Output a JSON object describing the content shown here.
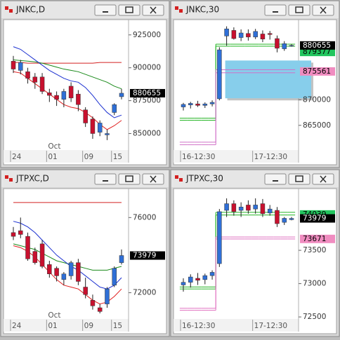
{
  "chart_data": [
    {
      "type": "candlestick",
      "title": "JNKC,D",
      "up_color": "#2f6fd6",
      "down_color": "#c8102e",
      "categories": [
        "24",
        null,
        null,
        null,
        null,
        "01",
        null,
        null,
        null,
        null,
        "09",
        null,
        null,
        null,
        "15",
        null
      ],
      "x_group": {
        "label": "Oct",
        "category": "01"
      },
      "open": [
        905000,
        898000,
        897000,
        893000,
        893000,
        881000,
        879000,
        876000,
        886000,
        880000,
        868000,
        861000,
        851000,
        849000,
        866000,
        878000
      ],
      "high": [
        909000,
        906000,
        900000,
        896000,
        896000,
        884000,
        882000,
        884000,
        889000,
        883000,
        870000,
        863000,
        860000,
        853000,
        873000,
        884000
      ],
      "low": [
        896000,
        895000,
        888000,
        884000,
        880000,
        874000,
        871000,
        870000,
        874000,
        867000,
        855000,
        846000,
        848000,
        845000,
        864000,
        876000
      ],
      "close": [
        899000,
        904000,
        892000,
        889000,
        882000,
        879000,
        876000,
        882000,
        877000,
        872000,
        858000,
        850000,
        858000,
        850000,
        872000,
        880655
      ],
      "lines": [
        {
          "color": "#d42020",
          "values": [
            904000,
            904000,
            903500,
            903500,
            903500,
            903500,
            903500,
            903500,
            903500,
            903500,
            903500,
            903500,
            904000,
            904000,
            904000,
            904000
          ]
        },
        {
          "color": "#1a8a1a",
          "values": [
            906000,
            905500,
            905000,
            904500,
            903500,
            902000,
            900500,
            899000,
            898000,
            897000,
            895000,
            893000,
            891000,
            889000,
            886000,
            884000
          ]
        },
        {
          "color": "#1a2fd0",
          "values": [
            916000,
            914000,
            910000,
            906000,
            902000,
            898000,
            895000,
            892000,
            890000,
            889000,
            885000,
            879000,
            872000,
            866000,
            862000,
            864000
          ]
        },
        {
          "color": "#e02020",
          "values": [
            897000,
            896000,
            892000,
            888000,
            884000,
            880000,
            876000,
            872000,
            870000,
            869000,
            866000,
            862000,
            857000,
            853000,
            856000,
            860000
          ]
        }
      ],
      "ylim": [
        838000,
        935000
      ],
      "yticks": [
        850000,
        875000,
        900000,
        925000
      ],
      "tags": [
        {
          "value": 880655,
          "color": "#000000",
          "text_color": "#ffffff"
        }
      ]
    },
    {
      "type": "candlestick",
      "title": "JNKC,30",
      "up_color": "#2f6fd6",
      "down_color": "#c8102e",
      "categories": [
        "16-12:30",
        null,
        null,
        null,
        null,
        null,
        null,
        null,
        null,
        null,
        "17-12:30",
        null,
        null,
        null,
        null,
        null
      ],
      "open": [
        868600,
        869000,
        869200,
        868900,
        869200,
        870200,
        882500,
        883600,
        882200,
        883000,
        882300,
        882900,
        883000,
        882000,
        880000,
        880600
      ],
      "high": [
        869400,
        869600,
        869800,
        869500,
        869900,
        880300,
        884400,
        884200,
        883800,
        883800,
        883900,
        883600,
        883500,
        882600,
        881500,
        880900
      ],
      "low": [
        867900,
        868300,
        868600,
        868400,
        868700,
        869900,
        880600,
        881800,
        881500,
        881600,
        881900,
        881300,
        881800,
        879300,
        879600,
        880400
      ],
      "close": [
        869100,
        869300,
        868900,
        869200,
        869500,
        879800,
        883900,
        882000,
        883100,
        882300,
        883400,
        881900,
        882800,
        880100,
        881000,
        880655
      ],
      "zone": {
        "from": 870300,
        "to": 877700,
        "color": "#87ceeb"
      },
      "levels": [
        {
          "color": "#22b422",
          "values": [
            866400,
            866400,
            866400,
            866400,
            866400,
            880900,
            880900,
            880900,
            880900,
            880900,
            880900,
            880900,
            880900,
            880900,
            880900,
            880900
          ]
        },
        {
          "color": "#22b422",
          "values": [
            866000,
            866000,
            866000,
            866000,
            866000,
            880500,
            880500,
            880500,
            880500,
            880500,
            880500,
            880500,
            880500,
            880500,
            880500,
            880500
          ]
        },
        {
          "color": "#d070c8",
          "values": [
            861700,
            861700,
            861700,
            861700,
            861700,
            875900,
            875900,
            875900,
            875900,
            875900,
            875900,
            875900,
            875900,
            875900,
            875900,
            875900
          ]
        },
        {
          "color": "#d070c8",
          "values": [
            861200,
            861200,
            861200,
            861200,
            861200,
            875300,
            875300,
            875300,
            875300,
            875300,
            875300,
            875300,
            875300,
            875300,
            875300,
            875300
          ]
        }
      ],
      "ylim": [
        860300,
        885300
      ],
      "yticks": [
        865000,
        870000
      ],
      "tags": [
        {
          "value": 879377,
          "color": "#22c55e",
          "text_color": "#000000"
        },
        {
          "value": 875561,
          "color": "#f08cc0",
          "text_color": "#000000"
        },
        {
          "value": 880655,
          "color": "#000000",
          "text_color": "#ffffff"
        }
      ]
    },
    {
      "type": "candlestick",
      "title": "JTPXC,D",
      "up_color": "#2f6fd6",
      "down_color": "#c8102e",
      "categories": [
        "24",
        null,
        null,
        null,
        null,
        "01",
        null,
        null,
        null,
        null,
        "09",
        null,
        null,
        null,
        "15",
        null
      ],
      "x_group": {
        "label": "Oct",
        "category": "01"
      },
      "open": [
        75200,
        75300,
        75000,
        74200,
        74600,
        73500,
        73300,
        72700,
        72900,
        73600,
        72300,
        71600,
        71200,
        71400,
        72400,
        73600
      ],
      "high": [
        75500,
        76000,
        75200,
        74400,
        74800,
        73700,
        73400,
        73100,
        73700,
        73800,
        72800,
        71900,
        71400,
        72300,
        73400,
        74300
      ],
      "low": [
        74800,
        74900,
        73700,
        73500,
        73300,
        72800,
        72600,
        72400,
        72700,
        72400,
        71700,
        71100,
        70900,
        71200,
        72300,
        73500
      ],
      "close": [
        75000,
        75100,
        73800,
        73600,
        73400,
        73000,
        72900,
        73000,
        73600,
        72600,
        71900,
        71300,
        71000,
        72200,
        73300,
        73979
      ],
      "lines": [
        {
          "color": "#d42020",
          "values": [
            76800,
            76800,
            76800,
            76800,
            76800,
            76800,
            76800,
            76800,
            76800,
            76800,
            76800,
            76800,
            76800,
            76800,
            76800,
            76800
          ]
        },
        {
          "color": "#1a8a1a",
          "values": [
            74600,
            74500,
            74400,
            74300,
            74100,
            73900,
            73700,
            73600,
            73500,
            73400,
            73300,
            73200,
            73200,
            73200,
            73300,
            73400
          ]
        },
        {
          "color": "#1a2fd0",
          "values": [
            75800,
            75700,
            75500,
            75200,
            74800,
            74400,
            74000,
            73700,
            73400,
            73200,
            72900,
            72600,
            72300,
            72200,
            72400,
            72800
          ]
        },
        {
          "color": "#e02020",
          "values": [
            74500,
            74400,
            74200,
            73900,
            73500,
            73100,
            72700,
            72400,
            72300,
            72200,
            71900,
            71600,
            71400,
            71500,
            71800,
            72200
          ]
        }
      ],
      "ylim": [
        70640,
        77430
      ],
      "yticks": [
        72000,
        76000
      ],
      "tags": [
        {
          "value": 73979,
          "color": "#000000",
          "text_color": "#ffffff"
        }
      ]
    },
    {
      "type": "candlestick",
      "title": "JTPXC,30",
      "up_color": "#2f6fd6",
      "down_color": "#c8102e",
      "categories": [
        "16-12:30",
        null,
        null,
        null,
        null,
        null,
        null,
        null,
        null,
        null,
        "17-12:30",
        null,
        null,
        null,
        null,
        null
      ],
      "open": [
        72980,
        73020,
        73080,
        73060,
        73120,
        73300,
        74100,
        74200,
        74100,
        74180,
        74120,
        74200,
        74060,
        74100,
        73920,
        73960
      ],
      "high": [
        73080,
        73140,
        73160,
        73150,
        73200,
        74120,
        74280,
        74250,
        74220,
        74250,
        74280,
        74270,
        74180,
        74150,
        74000,
        74000
      ],
      "low": [
        72880,
        72940,
        72980,
        72990,
        73060,
        73250,
        74000,
        74020,
        74000,
        74050,
        74050,
        74000,
        74020,
        73850,
        73880,
        73950
      ],
      "close": [
        73020,
        73100,
        73050,
        73120,
        73170,
        74080,
        74200,
        74080,
        74150,
        74100,
        74180,
        74050,
        74120,
        73900,
        73980,
        73979
      ],
      "levels": [
        {
          "color": "#22b422",
          "values": [
            72950,
            72950,
            72950,
            72950,
            72950,
            74070,
            74070,
            74070,
            74070,
            74070,
            74070,
            74070,
            74070,
            74070,
            74070,
            74070
          ]
        },
        {
          "color": "#22b422",
          "values": [
            72920,
            72920,
            72920,
            72920,
            72920,
            74030,
            74030,
            74030,
            74030,
            74030,
            74030,
            74030,
            74030,
            74030,
            74030,
            74030
          ]
        },
        {
          "color": "#e070c0",
          "values": [
            72630,
            72630,
            72630,
            72630,
            72630,
            73700,
            73700,
            73700,
            73700,
            73700,
            73700,
            73700,
            73700,
            73700,
            73700,
            73700
          ]
        },
        {
          "color": "#e070c0",
          "values": [
            72600,
            72600,
            72600,
            72600,
            72600,
            73670,
            73670,
            73670,
            73670,
            73670,
            73670,
            73670,
            73670,
            73670,
            73670,
            73670
          ]
        }
      ],
      "ylim": [
        72480,
        74395
      ],
      "yticks": [
        72500,
        73000,
        73500
      ],
      "tags": [
        {
          "value": 74039,
          "color": "#22c55e",
          "text_color": "#000000"
        },
        {
          "value": 73671,
          "color": "#f08cc0",
          "text_color": "#000000"
        },
        {
          "value": 73979,
          "color": "#000000",
          "text_color": "#ffffff"
        }
      ]
    }
  ]
}
